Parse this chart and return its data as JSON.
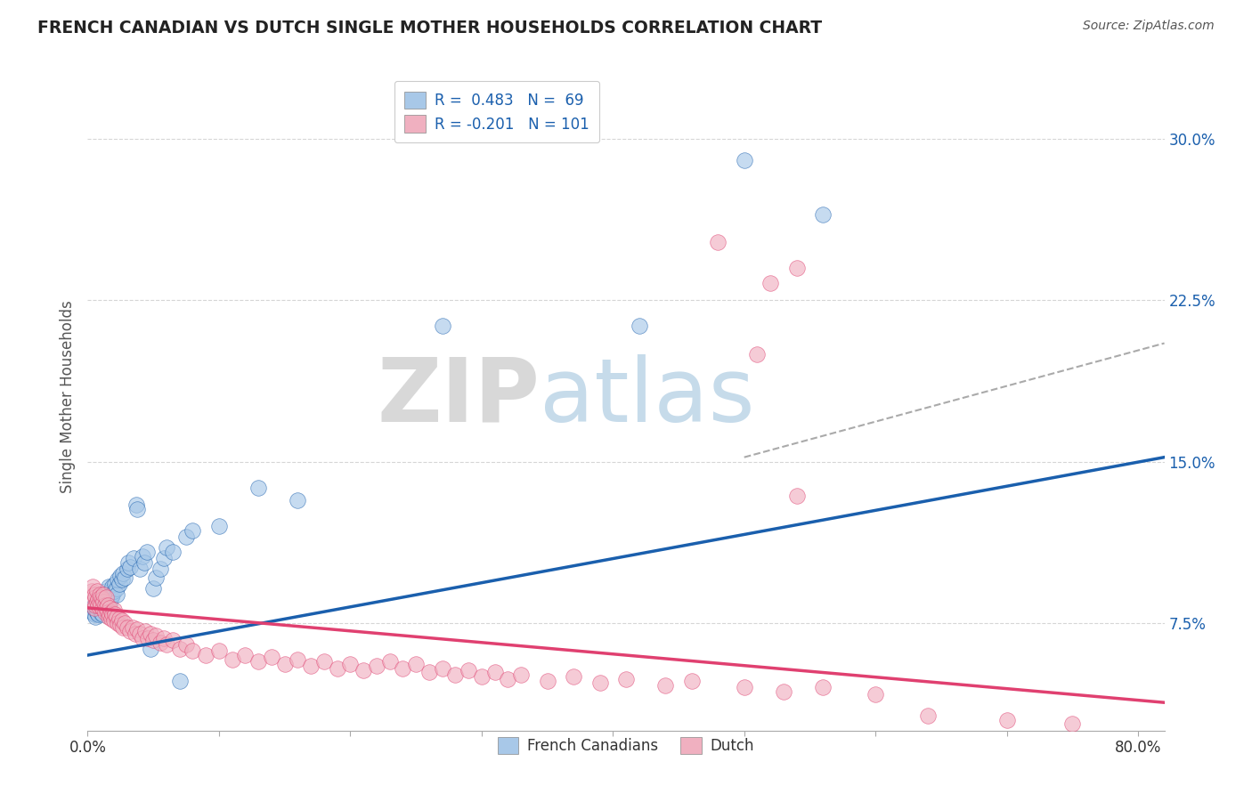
{
  "title": "FRENCH CANADIAN VS DUTCH SINGLE MOTHER HOUSEHOLDS CORRELATION CHART",
  "source": "Source: ZipAtlas.com",
  "ylabel": "Single Mother Households",
  "yticks": [
    0.075,
    0.15,
    0.225,
    0.3
  ],
  "ytick_labels": [
    "7.5%",
    "15.0%",
    "22.5%",
    "30.0%"
  ],
  "xlim": [
    0.0,
    0.82
  ],
  "ylim": [
    0.025,
    0.335
  ],
  "color_blue": "#a8c8e8",
  "color_pink": "#f0b0c0",
  "trend_blue": "#1a5fad",
  "trend_pink": "#e04070",
  "trend_dashed": "#aaaaaa",
  "watermark_zip": "ZIP",
  "watermark_atlas": "atlas",
  "fc_trend_y_start": 0.06,
  "fc_trend_y_end": 0.152,
  "dutch_trend_y_start": 0.082,
  "dutch_trend_y_end": 0.038,
  "dashed_trend_x_start": 0.5,
  "dashed_trend_x_end": 0.82,
  "dashed_trend_y_start": 0.152,
  "dashed_trend_y_end": 0.205,
  "french_canadian_points": [
    [
      0.003,
      0.082
    ],
    [
      0.004,
      0.08
    ],
    [
      0.005,
      0.079
    ],
    [
      0.005,
      0.083
    ],
    [
      0.006,
      0.081
    ],
    [
      0.006,
      0.078
    ],
    [
      0.007,
      0.082
    ],
    [
      0.007,
      0.08
    ],
    [
      0.008,
      0.083
    ],
    [
      0.008,
      0.079
    ],
    [
      0.009,
      0.082
    ],
    [
      0.009,
      0.085
    ],
    [
      0.01,
      0.08
    ],
    [
      0.01,
      0.084
    ],
    [
      0.011,
      0.082
    ],
    [
      0.011,
      0.079
    ],
    [
      0.012,
      0.085
    ],
    [
      0.012,
      0.088
    ],
    [
      0.013,
      0.083
    ],
    [
      0.013,
      0.087
    ],
    [
      0.014,
      0.085
    ],
    [
      0.014,
      0.09
    ],
    [
      0.015,
      0.086
    ],
    [
      0.015,
      0.083
    ],
    [
      0.016,
      0.088
    ],
    [
      0.016,
      0.092
    ],
    [
      0.017,
      0.087
    ],
    [
      0.017,
      0.084
    ],
    [
      0.018,
      0.09
    ],
    [
      0.018,
      0.087
    ],
    [
      0.019,
      0.092
    ],
    [
      0.019,
      0.088
    ],
    [
      0.02,
      0.09
    ],
    [
      0.021,
      0.093
    ],
    [
      0.022,
      0.091
    ],
    [
      0.022,
      0.088
    ],
    [
      0.023,
      0.095
    ],
    [
      0.024,
      0.093
    ],
    [
      0.025,
      0.097
    ],
    [
      0.026,
      0.095
    ],
    [
      0.027,
      0.098
    ],
    [
      0.028,
      0.096
    ],
    [
      0.03,
      0.1
    ],
    [
      0.031,
      0.103
    ],
    [
      0.032,
      0.101
    ],
    [
      0.035,
      0.105
    ],
    [
      0.037,
      0.13
    ],
    [
      0.038,
      0.128
    ],
    [
      0.04,
      0.1
    ],
    [
      0.042,
      0.106
    ],
    [
      0.043,
      0.103
    ],
    [
      0.045,
      0.108
    ],
    [
      0.048,
      0.063
    ],
    [
      0.05,
      0.091
    ],
    [
      0.052,
      0.096
    ],
    [
      0.055,
      0.1
    ],
    [
      0.058,
      0.105
    ],
    [
      0.06,
      0.11
    ],
    [
      0.065,
      0.108
    ],
    [
      0.07,
      0.048
    ],
    [
      0.075,
      0.115
    ],
    [
      0.08,
      0.118
    ],
    [
      0.1,
      0.12
    ],
    [
      0.13,
      0.138
    ],
    [
      0.16,
      0.132
    ],
    [
      0.27,
      0.213
    ],
    [
      0.42,
      0.213
    ],
    [
      0.5,
      0.29
    ],
    [
      0.56,
      0.265
    ]
  ],
  "dutch_points": [
    [
      0.003,
      0.09
    ],
    [
      0.004,
      0.092
    ],
    [
      0.004,
      0.085
    ],
    [
      0.005,
      0.088
    ],
    [
      0.005,
      0.082
    ],
    [
      0.006,
      0.087
    ],
    [
      0.006,
      0.083
    ],
    [
      0.007,
      0.085
    ],
    [
      0.007,
      0.09
    ],
    [
      0.008,
      0.086
    ],
    [
      0.008,
      0.083
    ],
    [
      0.009,
      0.088
    ],
    [
      0.009,
      0.085
    ],
    [
      0.01,
      0.087
    ],
    [
      0.01,
      0.083
    ],
    [
      0.011,
      0.086
    ],
    [
      0.011,
      0.082
    ],
    [
      0.012,
      0.085
    ],
    [
      0.012,
      0.088
    ],
    [
      0.013,
      0.083
    ],
    [
      0.013,
      0.08
    ],
    [
      0.014,
      0.082
    ],
    [
      0.014,
      0.087
    ],
    [
      0.015,
      0.083
    ],
    [
      0.015,
      0.08
    ],
    [
      0.016,
      0.078
    ],
    [
      0.017,
      0.082
    ],
    [
      0.017,
      0.079
    ],
    [
      0.018,
      0.08
    ],
    [
      0.018,
      0.077
    ],
    [
      0.019,
      0.079
    ],
    [
      0.02,
      0.081
    ],
    [
      0.02,
      0.076
    ],
    [
      0.021,
      0.079
    ],
    [
      0.022,
      0.078
    ],
    [
      0.023,
      0.075
    ],
    [
      0.024,
      0.077
    ],
    [
      0.025,
      0.074
    ],
    [
      0.026,
      0.076
    ],
    [
      0.027,
      0.073
    ],
    [
      0.028,
      0.075
    ],
    [
      0.03,
      0.073
    ],
    [
      0.032,
      0.071
    ],
    [
      0.034,
      0.073
    ],
    [
      0.036,
      0.07
    ],
    [
      0.038,
      0.072
    ],
    [
      0.04,
      0.07
    ],
    [
      0.042,
      0.068
    ],
    [
      0.044,
      0.071
    ],
    [
      0.046,
      0.068
    ],
    [
      0.048,
      0.07
    ],
    [
      0.05,
      0.067
    ],
    [
      0.052,
      0.069
    ],
    [
      0.055,
      0.066
    ],
    [
      0.058,
      0.068
    ],
    [
      0.06,
      0.065
    ],
    [
      0.065,
      0.067
    ],
    [
      0.07,
      0.063
    ],
    [
      0.075,
      0.065
    ],
    [
      0.08,
      0.062
    ],
    [
      0.09,
      0.06
    ],
    [
      0.1,
      0.062
    ],
    [
      0.11,
      0.058
    ],
    [
      0.12,
      0.06
    ],
    [
      0.13,
      0.057
    ],
    [
      0.14,
      0.059
    ],
    [
      0.15,
      0.056
    ],
    [
      0.16,
      0.058
    ],
    [
      0.17,
      0.055
    ],
    [
      0.18,
      0.057
    ],
    [
      0.19,
      0.054
    ],
    [
      0.2,
      0.056
    ],
    [
      0.21,
      0.053
    ],
    [
      0.22,
      0.055
    ],
    [
      0.23,
      0.057
    ],
    [
      0.24,
      0.054
    ],
    [
      0.25,
      0.056
    ],
    [
      0.26,
      0.052
    ],
    [
      0.27,
      0.054
    ],
    [
      0.28,
      0.051
    ],
    [
      0.29,
      0.053
    ],
    [
      0.3,
      0.05
    ],
    [
      0.31,
      0.052
    ],
    [
      0.32,
      0.049
    ],
    [
      0.33,
      0.051
    ],
    [
      0.35,
      0.048
    ],
    [
      0.37,
      0.05
    ],
    [
      0.39,
      0.047
    ],
    [
      0.41,
      0.049
    ],
    [
      0.44,
      0.046
    ],
    [
      0.46,
      0.048
    ],
    [
      0.5,
      0.045
    ],
    [
      0.53,
      0.043
    ],
    [
      0.56,
      0.045
    ],
    [
      0.6,
      0.042
    ],
    [
      0.64,
      0.032
    ],
    [
      0.7,
      0.03
    ],
    [
      0.75,
      0.028
    ],
    [
      0.48,
      0.252
    ],
    [
      0.52,
      0.233
    ],
    [
      0.54,
      0.24
    ],
    [
      0.51,
      0.2
    ],
    [
      0.54,
      0.134
    ]
  ]
}
